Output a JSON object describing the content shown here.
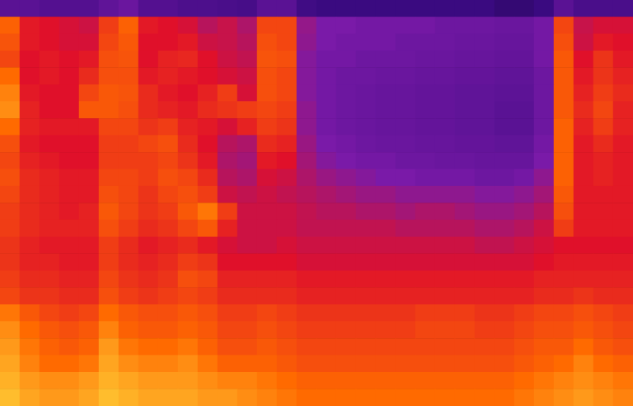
{
  "chart_data": {
    "type": "heatmap",
    "tick_labels": false,
    "grid": false,
    "zlim": [
      0,
      100
    ],
    "cells": [
      [
        30,
        30,
        28,
        28,
        28,
        32,
        35,
        28,
        28,
        26,
        26,
        25,
        24,
        30,
        30,
        22,
        20,
        20,
        20,
        20,
        20,
        20,
        20,
        20,
        20,
        18,
        18,
        20,
        30,
        25,
        25,
        25
      ],
      [
        78,
        62,
        60,
        58,
        56,
        70,
        78,
        62,
        60,
        58,
        52,
        55,
        50,
        72,
        72,
        45,
        40,
        40,
        38,
        38,
        38,
        38,
        36,
        36,
        36,
        35,
        35,
        38,
        72,
        55,
        58,
        58
      ],
      [
        75,
        62,
        60,
        58,
        58,
        72,
        76,
        60,
        60,
        62,
        56,
        55,
        52,
        74,
        72,
        44,
        40,
        38,
        38,
        38,
        36,
        36,
        36,
        35,
        35,
        34,
        34,
        38,
        74,
        56,
        62,
        60
      ],
      [
        72,
        60,
        62,
        60,
        62,
        74,
        75,
        60,
        64,
        65,
        60,
        56,
        54,
        75,
        74,
        42,
        38,
        38,
        36,
        36,
        36,
        35,
        35,
        34,
        34,
        33,
        33,
        38,
        76,
        60,
        68,
        62
      ],
      [
        80,
        60,
        62,
        60,
        66,
        74,
        74,
        62,
        64,
        62,
        60,
        58,
        56,
        74,
        72,
        42,
        38,
        36,
        36,
        35,
        35,
        34,
        34,
        33,
        33,
        32,
        32,
        36,
        76,
        62,
        68,
        64
      ],
      [
        84,
        62,
        60,
        60,
        72,
        76,
        75,
        66,
        62,
        60,
        64,
        70,
        58,
        74,
        72,
        42,
        38,
        36,
        35,
        34,
        34,
        33,
        33,
        32,
        32,
        31,
        31,
        36,
        76,
        64,
        70,
        66
      ],
      [
        86,
        64,
        60,
        60,
        76,
        76,
        74,
        66,
        64,
        62,
        66,
        68,
        70,
        72,
        70,
        44,
        38,
        36,
        35,
        34,
        34,
        33,
        33,
        32,
        32,
        30,
        30,
        36,
        76,
        66,
        72,
        64
      ],
      [
        80,
        64,
        62,
        62,
        62,
        72,
        72,
        68,
        70,
        64,
        62,
        58,
        64,
        70,
        68,
        44,
        38,
        36,
        35,
        34,
        34,
        33,
        33,
        32,
        32,
        30,
        30,
        36,
        78,
        64,
        70,
        64
      ],
      [
        74,
        62,
        60,
        60,
        60,
        70,
        70,
        72,
        74,
        66,
        60,
        52,
        50,
        66,
        64,
        46,
        40,
        38,
        36,
        35,
        35,
        34,
        34,
        33,
        33,
        32,
        32,
        38,
        78,
        62,
        66,
        62
      ],
      [
        72,
        64,
        62,
        60,
        60,
        70,
        70,
        70,
        72,
        68,
        62,
        50,
        48,
        62,
        60,
        48,
        42,
        40,
        38,
        38,
        36,
        36,
        35,
        35,
        34,
        34,
        34,
        40,
        78,
        62,
        64,
        62
      ],
      [
        74,
        66,
        64,
        62,
        62,
        72,
        72,
        70,
        74,
        72,
        66,
        52,
        50,
        58,
        56,
        50,
        46,
        44,
        42,
        40,
        40,
        38,
        38,
        38,
        36,
        36,
        38,
        44,
        78,
        62,
        64,
        62
      ],
      [
        72,
        66,
        64,
        62,
        62,
        74,
        72,
        68,
        72,
        74,
        70,
        56,
        54,
        56,
        54,
        52,
        50,
        48,
        46,
        46,
        44,
        44,
        44,
        44,
        42,
        42,
        44,
        48,
        76,
        62,
        62,
        62
      ],
      [
        70,
        66,
        64,
        62,
        64,
        76,
        72,
        68,
        70,
        76,
        82,
        70,
        56,
        56,
        56,
        54,
        52,
        52,
        50,
        50,
        48,
        50,
        50,
        48,
        46,
        46,
        48,
        52,
        74,
        62,
        62,
        62
      ],
      [
        70,
        66,
        64,
        64,
        64,
        74,
        70,
        66,
        68,
        72,
        76,
        64,
        56,
        56,
        56,
        54,
        54,
        54,
        54,
        54,
        52,
        52,
        52,
        52,
        50,
        50,
        52,
        56,
        70,
        62,
        62,
        62
      ],
      [
        68,
        64,
        62,
        62,
        62,
        70,
        66,
        62,
        64,
        66,
        62,
        58,
        56,
        56,
        58,
        56,
        56,
        56,
        56,
        56,
        56,
        56,
        56,
        56,
        54,
        54,
        56,
        58,
        60,
        60,
        60,
        60
      ],
      [
        68,
        64,
        64,
        62,
        62,
        70,
        66,
        64,
        66,
        70,
        68,
        60,
        60,
        60,
        60,
        58,
        58,
        58,
        58,
        58,
        58,
        58,
        58,
        58,
        58,
        58,
        58,
        60,
        62,
        62,
        62,
        62
      ],
      [
        70,
        66,
        66,
        64,
        64,
        72,
        68,
        66,
        68,
        74,
        72,
        64,
        64,
        64,
        64,
        62,
        62,
        62,
        62,
        62,
        62,
        62,
        62,
        62,
        62,
        62,
        62,
        64,
        64,
        64,
        64,
        64
      ],
      [
        72,
        68,
        68,
        66,
        66,
        74,
        70,
        68,
        70,
        72,
        70,
        66,
        66,
        66,
        66,
        64,
        64,
        64,
        64,
        64,
        64,
        64,
        64,
        64,
        64,
        64,
        64,
        66,
        66,
        68,
        66,
        66
      ],
      [
        82,
        76,
        72,
        70,
        72,
        80,
        76,
        74,
        74,
        76,
        74,
        70,
        70,
        72,
        70,
        68,
        68,
        68,
        68,
        68,
        68,
        70,
        70,
        70,
        68,
        68,
        70,
        72,
        72,
        74,
        72,
        70
      ],
      [
        86,
        80,
        76,
        74,
        76,
        84,
        78,
        76,
        76,
        78,
        76,
        72,
        72,
        74,
        72,
        70,
        70,
        70,
        70,
        70,
        70,
        72,
        72,
        72,
        70,
        70,
        72,
        74,
        74,
        76,
        74,
        72
      ],
      [
        88,
        82,
        78,
        76,
        78,
        88,
        82,
        80,
        80,
        82,
        78,
        74,
        74,
        76,
        74,
        72,
        72,
        72,
        72,
        72,
        72,
        72,
        72,
        72,
        72,
        72,
        74,
        76,
        76,
        80,
        76,
        74
      ],
      [
        90,
        84,
        80,
        80,
        82,
        90,
        86,
        84,
        84,
        86,
        82,
        78,
        78,
        78,
        76,
        74,
        74,
        74,
        74,
        74,
        74,
        74,
        74,
        74,
        74,
        74,
        76,
        78,
        80,
        84,
        80,
        78
      ],
      [
        92,
        88,
        86,
        86,
        88,
        92,
        90,
        88,
        88,
        88,
        86,
        84,
        84,
        82,
        80,
        78,
        78,
        78,
        78,
        78,
        78,
        78,
        78,
        78,
        78,
        78,
        80,
        82,
        84,
        86,
        84,
        82
      ],
      [
        94,
        90,
        88,
        88,
        90,
        94,
        92,
        90,
        90,
        90,
        88,
        88,
        86,
        84,
        82,
        80,
        80,
        80,
        80,
        80,
        80,
        80,
        80,
        80,
        80,
        80,
        82,
        84,
        86,
        88,
        86,
        84
      ]
    ]
  }
}
